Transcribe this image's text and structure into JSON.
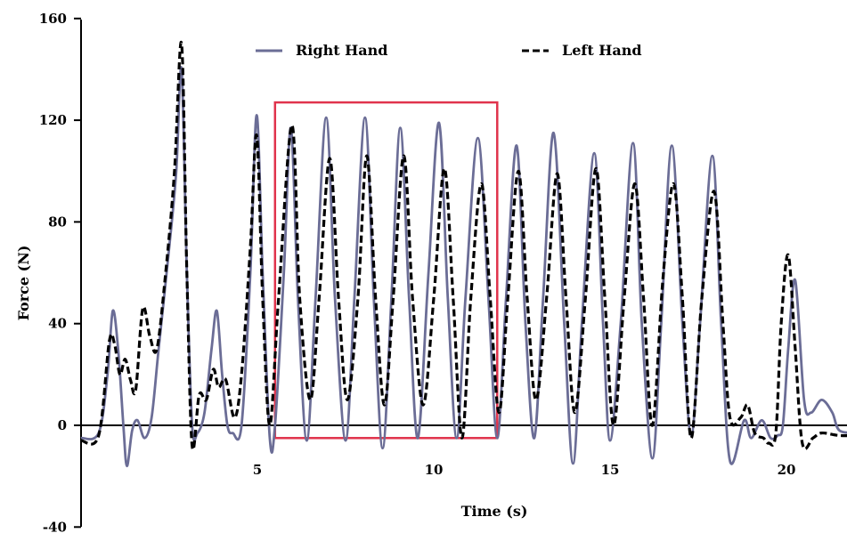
{
  "chart_data": {
    "type": "line",
    "xlabel": "Time (s)",
    "ylabel": "Force (N)",
    "xlim": [
      0,
      22
    ],
    "ylim": [
      -40,
      160
    ],
    "x_ticks": [
      5,
      10,
      15,
      20
    ],
    "y_ticks": [
      -40,
      0,
      40,
      80,
      120,
      160
    ],
    "zero_line": true,
    "legend_placement": "top-center",
    "highlight": {
      "x_range": [
        5.5,
        11.8
      ],
      "y_range": [
        -5,
        127
      ],
      "color": "#e0334c"
    },
    "series": [
      {
        "name": "Right Hand",
        "color": "#6b6d96",
        "style": "solid",
        "points": [
          [
            0.0,
            -5
          ],
          [
            0.5,
            -3
          ],
          [
            0.75,
            20
          ],
          [
            0.9,
            45
          ],
          [
            1.05,
            30
          ],
          [
            1.2,
            0
          ],
          [
            1.3,
            -16
          ],
          [
            1.45,
            -2
          ],
          [
            1.6,
            2
          ],
          [
            1.8,
            -5
          ],
          [
            2.0,
            3
          ],
          [
            2.2,
            30
          ],
          [
            2.5,
            70
          ],
          [
            2.7,
            100
          ],
          [
            2.85,
            140
          ],
          [
            3.0,
            60
          ],
          [
            3.15,
            0
          ],
          [
            3.3,
            -3
          ],
          [
            3.5,
            5
          ],
          [
            3.7,
            30
          ],
          [
            3.85,
            45
          ],
          [
            4.0,
            20
          ],
          [
            4.15,
            0
          ],
          [
            4.3,
            -3
          ],
          [
            4.55,
            0
          ],
          [
            4.8,
            60
          ],
          [
            4.98,
            122
          ],
          [
            5.15,
            60
          ],
          [
            5.35,
            -5
          ],
          [
            5.5,
            0
          ],
          [
            5.75,
            60
          ],
          [
            5.95,
            117
          ],
          [
            6.15,
            50
          ],
          [
            6.4,
            -6
          ],
          [
            6.65,
            50
          ],
          [
            6.95,
            121
          ],
          [
            7.2,
            50
          ],
          [
            7.5,
            -6
          ],
          [
            7.75,
            50
          ],
          [
            8.05,
            121
          ],
          [
            8.3,
            50
          ],
          [
            8.55,
            -9
          ],
          [
            8.8,
            50
          ],
          [
            9.05,
            117
          ],
          [
            9.3,
            50
          ],
          [
            9.55,
            -5
          ],
          [
            9.85,
            60
          ],
          [
            10.15,
            119
          ],
          [
            10.4,
            50
          ],
          [
            10.65,
            -5
          ],
          [
            10.9,
            50
          ],
          [
            11.25,
            113
          ],
          [
            11.55,
            50
          ],
          [
            11.8,
            -5
          ],
          [
            12.05,
            50
          ],
          [
            12.35,
            110
          ],
          [
            12.6,
            40
          ],
          [
            12.85,
            -5
          ],
          [
            13.1,
            50
          ],
          [
            13.4,
            115
          ],
          [
            13.7,
            40
          ],
          [
            13.95,
            -15
          ],
          [
            14.2,
            40
          ],
          [
            14.55,
            107
          ],
          [
            14.8,
            40
          ],
          [
            15.0,
            -6
          ],
          [
            15.3,
            40
          ],
          [
            15.65,
            111
          ],
          [
            15.9,
            40
          ],
          [
            16.2,
            -13
          ],
          [
            16.45,
            40
          ],
          [
            16.75,
            110
          ],
          [
            17.05,
            40
          ],
          [
            17.3,
            -4
          ],
          [
            17.55,
            40
          ],
          [
            17.9,
            106
          ],
          [
            18.15,
            40
          ],
          [
            18.4,
            -14
          ],
          [
            18.8,
            2
          ],
          [
            19.0,
            -5
          ],
          [
            19.3,
            2
          ],
          [
            19.55,
            -5
          ],
          [
            19.75,
            -4
          ],
          [
            19.9,
            0
          ],
          [
            20.05,
            30
          ],
          [
            20.25,
            57
          ],
          [
            20.5,
            10
          ],
          [
            20.7,
            5
          ],
          [
            21.0,
            10
          ],
          [
            21.3,
            5
          ],
          [
            21.5,
            -2
          ],
          [
            22.0,
            -3
          ]
        ]
      },
      {
        "name": "Left Hand",
        "color": "#000000",
        "style": "dashed",
        "points": [
          [
            0.0,
            -6
          ],
          [
            0.5,
            -4
          ],
          [
            0.8,
            33
          ],
          [
            0.95,
            32
          ],
          [
            1.1,
            20
          ],
          [
            1.25,
            26
          ],
          [
            1.4,
            18
          ],
          [
            1.55,
            14
          ],
          [
            1.75,
            46
          ],
          [
            1.95,
            35
          ],
          [
            2.15,
            30
          ],
          [
            2.4,
            60
          ],
          [
            2.65,
            100
          ],
          [
            2.85,
            150
          ],
          [
            3.0,
            60
          ],
          [
            3.15,
            -8
          ],
          [
            3.35,
            12
          ],
          [
            3.55,
            10
          ],
          [
            3.75,
            22
          ],
          [
            3.9,
            15
          ],
          [
            4.1,
            18
          ],
          [
            4.35,
            3
          ],
          [
            4.55,
            20
          ],
          [
            4.8,
            70
          ],
          [
            4.98,
            114
          ],
          [
            5.15,
            50
          ],
          [
            5.35,
            0
          ],
          [
            5.6,
            50
          ],
          [
            5.98,
            118
          ],
          [
            6.2,
            50
          ],
          [
            6.5,
            10
          ],
          [
            6.75,
            50
          ],
          [
            7.05,
            105
          ],
          [
            7.3,
            50
          ],
          [
            7.55,
            10
          ],
          [
            7.85,
            50
          ],
          [
            8.1,
            106
          ],
          [
            8.35,
            50
          ],
          [
            8.6,
            8
          ],
          [
            8.85,
            50
          ],
          [
            9.15,
            106
          ],
          [
            9.4,
            50
          ],
          [
            9.7,
            8
          ],
          [
            10.0,
            50
          ],
          [
            10.3,
            101
          ],
          [
            10.55,
            50
          ],
          [
            10.8,
            -5
          ],
          [
            11.05,
            50
          ],
          [
            11.35,
            95
          ],
          [
            11.6,
            50
          ],
          [
            11.85,
            5
          ],
          [
            12.1,
            50
          ],
          [
            12.4,
            100
          ],
          [
            12.65,
            50
          ],
          [
            12.9,
            10
          ],
          [
            13.2,
            50
          ],
          [
            13.5,
            99
          ],
          [
            13.75,
            50
          ],
          [
            14.0,
            5
          ],
          [
            14.3,
            50
          ],
          [
            14.6,
            101
          ],
          [
            14.85,
            50
          ],
          [
            15.1,
            0
          ],
          [
            15.4,
            50
          ],
          [
            15.7,
            95
          ],
          [
            15.95,
            50
          ],
          [
            16.2,
            0
          ],
          [
            16.5,
            58
          ],
          [
            16.8,
            95
          ],
          [
            17.05,
            50
          ],
          [
            17.3,
            -5
          ],
          [
            17.6,
            50
          ],
          [
            17.95,
            92
          ],
          [
            18.2,
            40
          ],
          [
            18.4,
            3
          ],
          [
            18.7,
            3
          ],
          [
            18.9,
            8
          ],
          [
            19.1,
            -3
          ],
          [
            19.35,
            -5
          ],
          [
            19.5,
            -7
          ],
          [
            19.7,
            -3
          ],
          [
            19.85,
            40
          ],
          [
            20.05,
            67
          ],
          [
            20.25,
            30
          ],
          [
            20.45,
            -7
          ],
          [
            20.75,
            -5
          ],
          [
            21.0,
            -3
          ],
          [
            21.5,
            -4
          ],
          [
            22.0,
            -4
          ]
        ]
      }
    ]
  }
}
